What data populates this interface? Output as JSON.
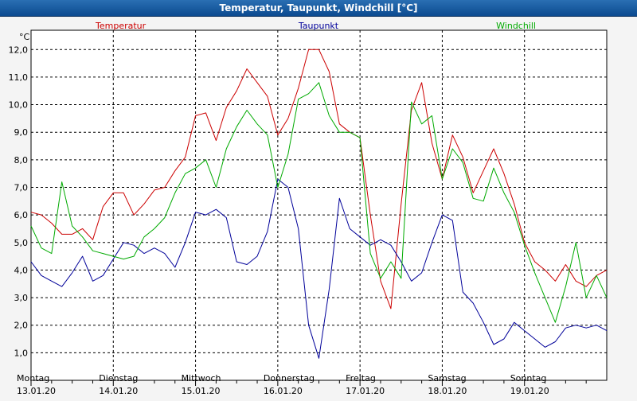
{
  "window": {
    "title": "Temperatur, Taupunkt, Windchill [°C]"
  },
  "chart_data": {
    "type": "line",
    "title": "Temperatur, Taupunkt, Windchill [°C]",
    "ylabel": "°C",
    "ylim": [
      0.0,
      12.7
    ],
    "yticks": [
      {
        "value": 1.0,
        "label": "1,0"
      },
      {
        "value": 2.0,
        "label": "2,0"
      },
      {
        "value": 3.0,
        "label": "3,0"
      },
      {
        "value": 4.0,
        "label": "4,0"
      },
      {
        "value": 5.0,
        "label": "5,0"
      },
      {
        "value": 6.0,
        "label": "6,0"
      },
      {
        "value": 7.0,
        "label": "7,0"
      },
      {
        "value": 8.0,
        "label": "8,0"
      },
      {
        "value": 9.0,
        "label": "9,0"
      },
      {
        "value": 10.0,
        "label": "10,0"
      },
      {
        "value": 11.0,
        "label": "11,0"
      },
      {
        "value": 12.0,
        "label": "12,0"
      }
    ],
    "xlim": [
      "13.01.20 00:00",
      "19.01.20 24:00"
    ],
    "xticks": [
      {
        "day": "Montag",
        "date": "13.01.20"
      },
      {
        "day": "Dienstag",
        "date": "14.01.20"
      },
      {
        "day": "Mittwoch",
        "date": "15.01.20"
      },
      {
        "day": "Donnerstag",
        "date": "16.01.20"
      },
      {
        "day": "Freitag",
        "date": "17.01.20"
      },
      {
        "day": "Samstag",
        "date": "18.01.20"
      },
      {
        "day": "Sonntag",
        "date": "19.01.20"
      }
    ],
    "grid": true,
    "legend_position": "top",
    "series": [
      {
        "name": "Temperatur",
        "color": "#cc0000",
        "points": [
          [
            "13.01.20 00:00",
            6.1
          ],
          [
            "13.01.20 03:00",
            6.0
          ],
          [
            "13.01.20 06:00",
            5.7
          ],
          [
            "13.01.20 09:00",
            5.3
          ],
          [
            "13.01.20 12:00",
            5.3
          ],
          [
            "13.01.20 15:00",
            5.5
          ],
          [
            "13.01.20 18:00",
            5.1
          ],
          [
            "13.01.20 21:00",
            6.3
          ],
          [
            "14.01.20 00:00",
            6.8
          ],
          [
            "14.01.20 03:00",
            6.8
          ],
          [
            "14.01.20 06:00",
            6.0
          ],
          [
            "14.01.20 09:00",
            6.4
          ],
          [
            "14.01.20 12:00",
            6.9
          ],
          [
            "14.01.20 15:00",
            7.0
          ],
          [
            "14.01.20 18:00",
            7.6
          ],
          [
            "14.01.20 21:00",
            8.1
          ],
          [
            "15.01.20 00:00",
            9.6
          ],
          [
            "15.01.20 03:00",
            9.7
          ],
          [
            "15.01.20 06:00",
            8.7
          ],
          [
            "15.01.20 09:00",
            9.9
          ],
          [
            "15.01.20 12:00",
            10.5
          ],
          [
            "15.01.20 15:00",
            11.3
          ],
          [
            "15.01.20 18:00",
            10.8
          ],
          [
            "15.01.20 21:00",
            10.3
          ],
          [
            "16.01.20 00:00",
            8.9
          ],
          [
            "16.01.20 03:00",
            9.5
          ],
          [
            "16.01.20 06:00",
            10.6
          ],
          [
            "16.01.20 09:00",
            12.0
          ],
          [
            "16.01.20 12:00",
            12.0
          ],
          [
            "16.01.20 15:00",
            11.2
          ],
          [
            "16.01.20 18:00",
            9.3
          ],
          [
            "16.01.20 21:00",
            9.0
          ],
          [
            "17.01.20 00:00",
            8.8
          ],
          [
            "17.01.20 03:00",
            6.0
          ],
          [
            "17.01.20 06:00",
            3.6
          ],
          [
            "17.01.20 09:00",
            2.6
          ],
          [
            "17.01.20 12:00",
            6.4
          ],
          [
            "17.01.20 15:00",
            9.8
          ],
          [
            "17.01.20 18:00",
            10.8
          ],
          [
            "17.01.20 21:00",
            8.6
          ],
          [
            "18.01.20 00:00",
            7.3
          ],
          [
            "18.01.20 03:00",
            8.9
          ],
          [
            "18.01.20 06:00",
            8.1
          ],
          [
            "18.01.20 09:00",
            6.8
          ],
          [
            "18.01.20 12:00",
            7.6
          ],
          [
            "18.01.20 15:00",
            8.4
          ],
          [
            "18.01.20 18:00",
            7.5
          ],
          [
            "18.01.20 21:00",
            6.4
          ],
          [
            "19.01.20 00:00",
            5.0
          ],
          [
            "19.01.20 03:00",
            4.3
          ],
          [
            "19.01.20 06:00",
            4.0
          ],
          [
            "19.01.20 09:00",
            3.6
          ],
          [
            "19.01.20 12:00",
            4.2
          ],
          [
            "19.01.20 15:00",
            3.6
          ],
          [
            "19.01.20 18:00",
            3.4
          ],
          [
            "19.01.20 21:00",
            3.8
          ],
          [
            "19.01.20 24:00",
            4.0
          ]
        ]
      },
      {
        "name": "Taupunkt",
        "color": "#000099",
        "points": [
          [
            "13.01.20 00:00",
            4.3
          ],
          [
            "13.01.20 03:00",
            3.8
          ],
          [
            "13.01.20 06:00",
            3.6
          ],
          [
            "13.01.20 09:00",
            3.4
          ],
          [
            "13.01.20 12:00",
            3.9
          ],
          [
            "13.01.20 15:00",
            4.5
          ],
          [
            "13.01.20 18:00",
            3.6
          ],
          [
            "13.01.20 21:00",
            3.8
          ],
          [
            "14.01.20 00:00",
            4.4
          ],
          [
            "14.01.20 03:00",
            5.0
          ],
          [
            "14.01.20 06:00",
            4.9
          ],
          [
            "14.01.20 09:00",
            4.6
          ],
          [
            "14.01.20 12:00",
            4.8
          ],
          [
            "14.01.20 15:00",
            4.6
          ],
          [
            "14.01.20 18:00",
            4.1
          ],
          [
            "14.01.20 21:00",
            5.0
          ],
          [
            "15.01.20 00:00",
            6.1
          ],
          [
            "15.01.20 03:00",
            6.0
          ],
          [
            "15.01.20 06:00",
            6.2
          ],
          [
            "15.01.20 09:00",
            5.9
          ],
          [
            "15.01.20 12:00",
            4.3
          ],
          [
            "15.01.20 15:00",
            4.2
          ],
          [
            "15.01.20 18:00",
            4.5
          ],
          [
            "15.01.20 21:00",
            5.4
          ],
          [
            "16.01.20 00:00",
            7.3
          ],
          [
            "16.01.20 03:00",
            7.0
          ],
          [
            "16.01.20 06:00",
            5.5
          ],
          [
            "16.01.20 09:00",
            2.0
          ],
          [
            "16.01.20 12:00",
            0.8
          ],
          [
            "16.01.20 15:00",
            3.3
          ],
          [
            "16.01.20 18:00",
            6.6
          ],
          [
            "16.01.20 21:00",
            5.5
          ],
          [
            "17.01.20 00:00",
            5.2
          ],
          [
            "17.01.20 03:00",
            4.9
          ],
          [
            "17.01.20 06:00",
            5.1
          ],
          [
            "17.01.20 09:00",
            4.9
          ],
          [
            "17.01.20 12:00",
            4.3
          ],
          [
            "17.01.20 15:00",
            3.6
          ],
          [
            "17.01.20 18:00",
            3.9
          ],
          [
            "17.01.20 21:00",
            5.0
          ],
          [
            "18.01.20 00:00",
            6.0
          ],
          [
            "18.01.20 03:00",
            5.8
          ],
          [
            "18.01.20 06:00",
            3.2
          ],
          [
            "18.01.20 09:00",
            2.8
          ],
          [
            "18.01.20 12:00",
            2.1
          ],
          [
            "18.01.20 15:00",
            1.3
          ],
          [
            "18.01.20 18:00",
            1.5
          ],
          [
            "18.01.20 21:00",
            2.1
          ],
          [
            "19.01.20 00:00",
            1.8
          ],
          [
            "19.01.20 03:00",
            1.5
          ],
          [
            "19.01.20 06:00",
            1.2
          ],
          [
            "19.01.20 09:00",
            1.4
          ],
          [
            "19.01.20 12:00",
            1.9
          ],
          [
            "19.01.20 15:00",
            2.0
          ],
          [
            "19.01.20 18:00",
            1.9
          ],
          [
            "19.01.20 21:00",
            2.0
          ],
          [
            "19.01.20 24:00",
            1.8
          ]
        ]
      },
      {
        "name": "Windchill",
        "color": "#00aa00",
        "points": [
          [
            "13.01.20 00:00",
            5.6
          ],
          [
            "13.01.20 03:00",
            4.8
          ],
          [
            "13.01.20 06:00",
            4.6
          ],
          [
            "13.01.20 09:00",
            7.2
          ],
          [
            "13.01.20 12:00",
            5.6
          ],
          [
            "13.01.20 15:00",
            5.2
          ],
          [
            "13.01.20 18:00",
            4.7
          ],
          [
            "13.01.20 21:00",
            4.6
          ],
          [
            "14.01.20 00:00",
            4.5
          ],
          [
            "14.01.20 03:00",
            4.4
          ],
          [
            "14.01.20 06:00",
            4.5
          ],
          [
            "14.01.20 09:00",
            5.2
          ],
          [
            "14.01.20 12:00",
            5.5
          ],
          [
            "14.01.20 15:00",
            5.9
          ],
          [
            "14.01.20 18:00",
            6.8
          ],
          [
            "14.01.20 21:00",
            7.5
          ],
          [
            "15.01.20 00:00",
            7.7
          ],
          [
            "15.01.20 03:00",
            8.0
          ],
          [
            "15.01.20 06:00",
            7.0
          ],
          [
            "15.01.20 09:00",
            8.4
          ],
          [
            "15.01.20 12:00",
            9.2
          ],
          [
            "15.01.20 15:00",
            9.8
          ],
          [
            "15.01.20 18:00",
            9.3
          ],
          [
            "15.01.20 21:00",
            8.9
          ],
          [
            "16.01.20 00:00",
            7.0
          ],
          [
            "16.01.20 03:00",
            8.2
          ],
          [
            "16.01.20 06:00",
            10.2
          ],
          [
            "16.01.20 09:00",
            10.4
          ],
          [
            "16.01.20 12:00",
            10.8
          ],
          [
            "16.01.20 15:00",
            9.6
          ],
          [
            "16.01.20 18:00",
            9.0
          ],
          [
            "16.01.20 21:00",
            9.0
          ],
          [
            "17.01.20 00:00",
            8.8
          ],
          [
            "17.01.20 03:00",
            4.6
          ],
          [
            "17.01.20 06:00",
            3.7
          ],
          [
            "17.01.20 09:00",
            4.3
          ],
          [
            "17.01.20 12:00",
            3.7
          ],
          [
            "17.01.20 15:00",
            10.1
          ],
          [
            "17.01.20 18:00",
            9.3
          ],
          [
            "17.01.20 21:00",
            9.6
          ],
          [
            "18.01.20 00:00",
            7.3
          ],
          [
            "18.01.20 03:00",
            8.4
          ],
          [
            "18.01.20 06:00",
            7.9
          ],
          [
            "18.01.20 09:00",
            6.6
          ],
          [
            "18.01.20 12:00",
            6.5
          ],
          [
            "18.01.20 15:00",
            7.7
          ],
          [
            "18.01.20 18:00",
            6.8
          ],
          [
            "18.01.20 21:00",
            6.1
          ],
          [
            "19.01.20 00:00",
            4.9
          ],
          [
            "19.01.20 03:00",
            3.9
          ],
          [
            "19.01.20 06:00",
            3.0
          ],
          [
            "19.01.20 09:00",
            2.1
          ],
          [
            "19.01.20 12:00",
            3.4
          ],
          [
            "19.01.20 15:00",
            5.0
          ],
          [
            "19.01.20 18:00",
            3.0
          ],
          [
            "19.01.20 21:00",
            3.8
          ],
          [
            "19.01.20 24:00",
            3.0
          ]
        ]
      }
    ]
  }
}
